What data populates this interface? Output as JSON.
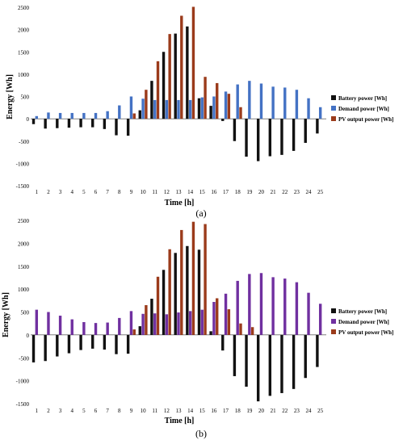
{
  "chart_data": [
    {
      "type": "bar",
      "panel_label": "(a)",
      "xlabel": "Time [h]",
      "ylabel": "Energy [Wh]",
      "ylim": [
        -1500,
        2500
      ],
      "yticks": [
        -1500,
        -1000,
        -500,
        0,
        500,
        1000,
        1500,
        2000,
        2500
      ],
      "categories": [
        "1",
        "2",
        "3",
        "4",
        "5",
        "6",
        "7",
        "8",
        "9",
        "10",
        "11",
        "12",
        "13",
        "14",
        "15",
        "16",
        "17",
        "18",
        "19",
        "20",
        "21",
        "22",
        "23",
        "24",
        "25"
      ],
      "series": [
        {
          "name": "Battery power [Wh]",
          "color": "#111111",
          "values": [
            -120,
            -220,
            -210,
            -200,
            -190,
            -190,
            -230,
            -370,
            -380,
            190,
            850,
            1500,
            1910,
            2070,
            460,
            290,
            -50,
            -500,
            -850,
            -950,
            -840,
            -810,
            -720,
            -540,
            -330
          ]
        },
        {
          "name": "Demand power [Wh]",
          "color": "#4472c4",
          "values": [
            60,
            140,
            130,
            130,
            130,
            130,
            170,
            300,
            500,
            450,
            420,
            420,
            420,
            420,
            480,
            500,
            610,
            770,
            850,
            790,
            720,
            700,
            650,
            460,
            260
          ]
        },
        {
          "name": "PV output power [Wh]",
          "color": "#9b3b1b",
          "values": [
            0,
            0,
            0,
            0,
            0,
            0,
            0,
            0,
            120,
            650,
            1290,
            1900,
            2310,
            2510,
            940,
            800,
            560,
            260,
            0,
            0,
            0,
            0,
            0,
            0,
            0
          ]
        }
      ],
      "legend_position": "right"
    },
    {
      "type": "bar",
      "panel_label": "(b)",
      "xlabel": "Time [h]",
      "ylabel": "Energy [Wh]",
      "ylim": [
        -1500,
        2500
      ],
      "yticks": [
        -1500,
        -1000,
        -500,
        0,
        500,
        1000,
        1500,
        2000,
        2500
      ],
      "categories": [
        "1",
        "2",
        "3",
        "4",
        "5",
        "6",
        "7",
        "8",
        "9",
        "10",
        "11",
        "12",
        "13",
        "14",
        "15",
        "16",
        "17",
        "18",
        "19",
        "20",
        "21",
        "22",
        "23",
        "24",
        "25"
      ],
      "series": [
        {
          "name": "Battery power [Wh]",
          "color": "#111111",
          "values": [
            -600,
            -570,
            -470,
            -400,
            -330,
            -300,
            -320,
            -420,
            -410,
            190,
            790,
            1420,
            1790,
            1940,
            1860,
            80,
            -340,
            -900,
            -1130,
            -1450,
            -1330,
            -1270,
            -1180,
            -940,
            -700
          ]
        },
        {
          "name": "Demand power [Wh]",
          "color": "#7030a0",
          "values": [
            550,
            500,
            420,
            340,
            280,
            260,
            270,
            370,
            520,
            460,
            470,
            450,
            490,
            520,
            550,
            720,
            900,
            1180,
            1330,
            1350,
            1260,
            1230,
            1150,
            920,
            680
          ]
        },
        {
          "name": "PV output power [Wh]",
          "color": "#9b3b1b",
          "values": [
            0,
            0,
            0,
            0,
            0,
            0,
            0,
            0,
            120,
            650,
            1270,
            1870,
            2290,
            2470,
            2420,
            800,
            560,
            250,
            170,
            0,
            0,
            0,
            0,
            0,
            0
          ]
        }
      ],
      "legend_position": "right"
    }
  ]
}
